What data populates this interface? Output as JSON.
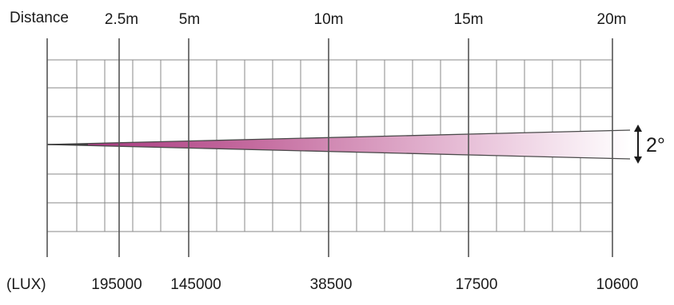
{
  "diagram": {
    "distance_label": "Distance",
    "lux_label": "(LUX)",
    "markers": [
      {
        "distance": "2.5m",
        "lux": "195000"
      },
      {
        "distance": "5m",
        "lux": "145000"
      },
      {
        "distance": "10m",
        "lux": "38500"
      },
      {
        "distance": "15m",
        "lux": "17500"
      },
      {
        "distance": "20m",
        "lux": "10600"
      }
    ],
    "beam_angle": "2°",
    "colors": {
      "grid_line": "#8a8a8a",
      "marker_line": "#555555",
      "beam_start": "#b04a86",
      "beam_end": "#ffffff"
    }
  }
}
